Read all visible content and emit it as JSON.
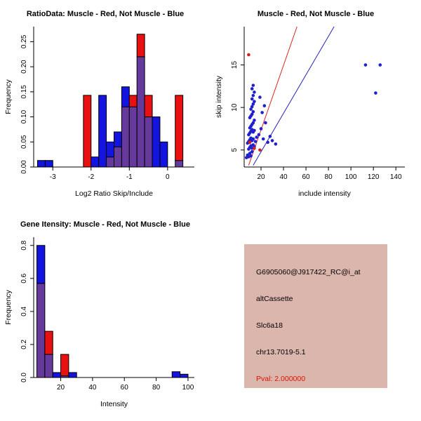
{
  "figure": {
    "background": "#ffffff",
    "legend_note": "Muscle - Red, Not Muscle - Blue"
  },
  "chart_data": [
    {
      "type": "bar",
      "variant": "overlaid-histogram",
      "title": "RatioData: Muscle - Red, Not Muscle - Blue",
      "xlabel": "Log2 Ratio Skip/Include",
      "ylabel": "Frequency",
      "xlim": [
        -3.5,
        0.7
      ],
      "ylim": [
        0,
        0.28
      ],
      "xticks": [
        "-3",
        "-2",
        "-1",
        "0"
      ],
      "yticks": [
        "0.00",
        "0.05",
        "0.10",
        "0.15",
        "0.20",
        "0.25"
      ],
      "colors": {
        "red": "#e81010",
        "blue": "#1414e0",
        "overlap": "#663a9d"
      },
      "series_legend": [
        {
          "name": "Muscle",
          "color": "#e81010"
        },
        {
          "name": "Not Muscle",
          "color": "#1414e0"
        }
      ],
      "bins": [
        {
          "x0": -3.4,
          "x1": -3.2,
          "red": 0,
          "blue": 0.013
        },
        {
          "x0": -3.2,
          "x1": -3.0,
          "red": 0,
          "blue": 0.013
        },
        {
          "x0": -2.2,
          "x1": -2.0,
          "red": 0.143,
          "blue": 0
        },
        {
          "x0": -2.0,
          "x1": -1.8,
          "red": 0,
          "blue": 0.02
        },
        {
          "x0": -1.8,
          "x1": -1.6,
          "red": 0,
          "blue": 0.143
        },
        {
          "x0": -1.6,
          "x1": -1.4,
          "red": 0.02,
          "blue": 0.05
        },
        {
          "x0": -1.4,
          "x1": -1.2,
          "red": 0.04,
          "blue": 0.07
        },
        {
          "x0": -1.2,
          "x1": -1.0,
          "red": 0.12,
          "blue": 0.16
        },
        {
          "x0": -1.0,
          "x1": -0.8,
          "red": 0.143,
          "blue": 0.12
        },
        {
          "x0": -0.8,
          "x1": -0.6,
          "red": 0.265,
          "blue": 0.22
        },
        {
          "x0": -0.6,
          "x1": -0.4,
          "red": 0.143,
          "blue": 0.1
        },
        {
          "x0": -0.4,
          "x1": -0.2,
          "red": 0,
          "blue": 0.1
        },
        {
          "x0": -0.2,
          "x1": 0.0,
          "red": 0,
          "blue": 0.05
        },
        {
          "x0": 0.2,
          "x1": 0.4,
          "red": 0.143,
          "blue": 0.013
        }
      ]
    },
    {
      "type": "scatter",
      "title": "Muscle - Red, Not Muscle - Blue",
      "xlabel": "include intensity",
      "ylabel": "skip intensity",
      "xlim": [
        5,
        148
      ],
      "ylim": [
        3,
        19.5
      ],
      "xticks": [
        "20",
        "40",
        "60",
        "80",
        "100",
        "120",
        "140"
      ],
      "yticks": [
        "5",
        "10",
        "15"
      ],
      "lines": [
        {
          "name": "muscle-fit-line",
          "color": "#dd2222",
          "x1": 9,
          "y1": 3.2,
          "x2": 52,
          "y2": 19.5
        },
        {
          "name": "not-muscle-fit-line",
          "color": "#2222bb",
          "x1": 13,
          "y1": 3.2,
          "x2": 85,
          "y2": 19.5
        }
      ],
      "series": [
        {
          "name": "Not Muscle",
          "color": "#2020cc",
          "points": [
            [
              7,
              4.1
            ],
            [
              8,
              4.4
            ],
            [
              9,
              4.2
            ],
            [
              10,
              4.6
            ],
            [
              11,
              4.3
            ],
            [
              12,
              4.8
            ],
            [
              9,
              5.1
            ],
            [
              10,
              5.3
            ],
            [
              11,
              5.5
            ],
            [
              12,
              5.2
            ],
            [
              13,
              5.6
            ],
            [
              14,
              5.4
            ],
            [
              8,
              5.8
            ],
            [
              9,
              6.0
            ],
            [
              10,
              6.2
            ],
            [
              11,
              6.4
            ],
            [
              12,
              6.1
            ],
            [
              13,
              6.3
            ],
            [
              15,
              6.0
            ],
            [
              16,
              6.5
            ],
            [
              9,
              6.8
            ],
            [
              10,
              7.0
            ],
            [
              11,
              7.2
            ],
            [
              12,
              7.4
            ],
            [
              13,
              7.1
            ],
            [
              14,
              7.3
            ],
            [
              10,
              7.6
            ],
            [
              11,
              7.8
            ],
            [
              12,
              8.0
            ],
            [
              13,
              8.2
            ],
            [
              14,
              8.5
            ],
            [
              10,
              8.8
            ],
            [
              11,
              9.0
            ],
            [
              12,
              9.2
            ],
            [
              13,
              9.5
            ],
            [
              11,
              9.8
            ],
            [
              12,
              10.1
            ],
            [
              13,
              10.4
            ],
            [
              14,
              10.7
            ],
            [
              12,
              11.0
            ],
            [
              13,
              11.4
            ],
            [
              14,
              11.8
            ],
            [
              12,
              12.2
            ],
            [
              13,
              12.6
            ],
            [
              18,
              6.8
            ],
            [
              20,
              7.5
            ],
            [
              22,
              6.3
            ],
            [
              24,
              8.2
            ],
            [
              26,
              5.9
            ],
            [
              28,
              6.6
            ],
            [
              21,
              9.4
            ],
            [
              19,
              11.2
            ],
            [
              23,
              10.2
            ],
            [
              30,
              6.1
            ],
            [
              33,
              5.7
            ],
            [
              113,
              15
            ],
            [
              126,
              15
            ],
            [
              122,
              11.7
            ]
          ]
        },
        {
          "name": "Muscle",
          "color": "#d02020",
          "points": [
            [
              9,
              16.2
            ],
            [
              10,
              5.9
            ],
            [
              14,
              5.2
            ],
            [
              19,
              5.0
            ]
          ]
        }
      ]
    },
    {
      "type": "bar",
      "variant": "overlaid-histogram",
      "title": "Gene Itensity: Muscle - Red, Not Muscle - Blue",
      "xlabel": "Intensity",
      "ylabel": "Frequency",
      "xlim": [
        3,
        104
      ],
      "ylim": [
        0,
        0.85
      ],
      "xticks": [
        "20",
        "40",
        "60",
        "80",
        "100"
      ],
      "yticks": [
        "0.0",
        "0.2",
        "0.4",
        "0.6",
        "0.8"
      ],
      "colors": {
        "red": "#e81010",
        "blue": "#1414e0",
        "overlap": "#663a9d"
      },
      "bins": [
        {
          "x0": 5,
          "x1": 10,
          "red": 0.57,
          "blue": 0.8
        },
        {
          "x0": 10,
          "x1": 15,
          "red": 0.28,
          "blue": 0.14
        },
        {
          "x0": 15,
          "x1": 20,
          "red": 0,
          "blue": 0.03
        },
        {
          "x0": 20,
          "x1": 25,
          "red": 0.14,
          "blue": 0.01
        },
        {
          "x0": 25,
          "x1": 30,
          "red": 0,
          "blue": 0.03
        },
        {
          "x0": 90,
          "x1": 95,
          "red": 0,
          "blue": 0.035
        },
        {
          "x0": 95,
          "x1": 100,
          "red": 0,
          "blue": 0.02
        }
      ]
    },
    {
      "type": "table",
      "bg_color": "#dbb6ad",
      "rows": [
        {
          "label": "probe-id",
          "text": "G6905060@J917422_RC@i_at",
          "color": "#000000"
        },
        {
          "label": "event-type",
          "text": "altCassette",
          "color": "#000000"
        },
        {
          "label": "gene-symbol",
          "text": "Slc6a18",
          "color": "#000000"
        },
        {
          "label": "location",
          "text": "chr13.7019-5.1",
          "color": "#000000"
        },
        {
          "label": "p-value",
          "text": "Pval: 2.000000",
          "color": "#dd1100"
        }
      ]
    }
  ]
}
